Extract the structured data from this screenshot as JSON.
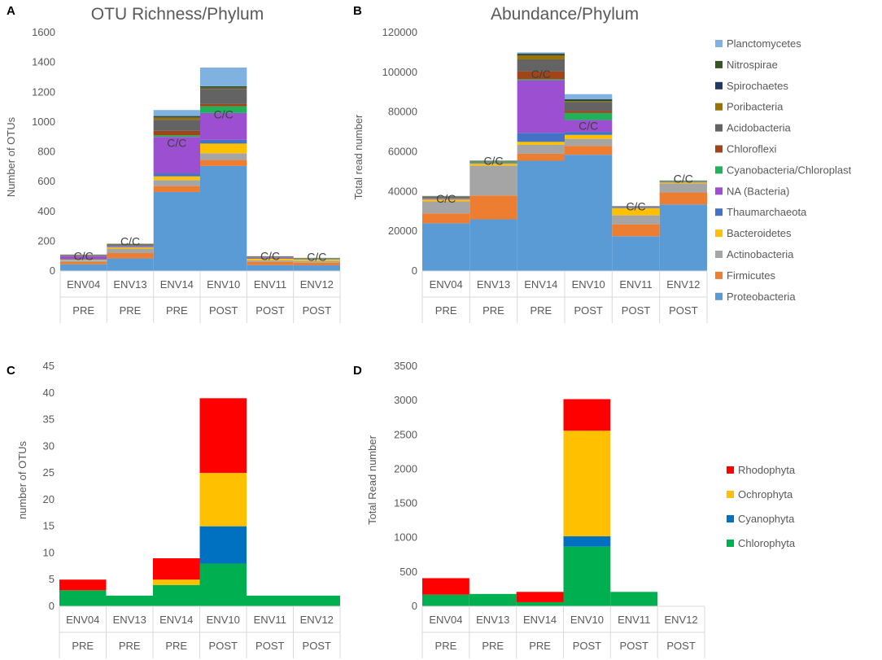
{
  "panels": {
    "A": {
      "letter": "A",
      "title": "OTU Richness/Phylum",
      "ylabel": "Number of OTUs",
      "ylim": [
        0,
        1600
      ],
      "yticks": [
        0,
        200,
        400,
        600,
        800,
        1000,
        1200,
        1400,
        1600
      ],
      "annotation": "C/C"
    },
    "B": {
      "letter": "B",
      "title": "Abundance/Phylum",
      "ylabel": "Total read number",
      "ylim": [
        0,
        120000
      ],
      "yticks": [
        0,
        20000,
        40000,
        60000,
        80000,
        100000,
        120000
      ],
      "annotation": "C/C"
    },
    "C": {
      "letter": "C",
      "title": "",
      "ylabel": "number of OTUs",
      "ylim": [
        0,
        45
      ],
      "yticks": [
        0,
        5,
        10,
        15,
        20,
        25,
        30,
        35,
        40,
        45
      ]
    },
    "D": {
      "letter": "D",
      "title": "",
      "ylabel": "Total Read number",
      "ylim": [
        0,
        3500
      ],
      "yticks": [
        0,
        500,
        1000,
        1500,
        2000,
        2500,
        3000,
        3500
      ]
    }
  },
  "phylum_legend": [
    "Planctomycetes",
    "Nitrospirae",
    "Spirochaetes",
    "Poribacteria",
    "Acidobacteria",
    "Chloroflexi",
    "Cyanobacteria/Chloroplast",
    "NA (Bacteria)",
    "Thaumarchaeota",
    "Bacteroidetes",
    "Actinobacteria",
    "Firmicutes",
    "Proteobacteria"
  ],
  "algae_legend": [
    "Rhodophyta",
    "Ochrophyta",
    "Cyanophyta",
    "Chlorophyta"
  ],
  "chart_data": [
    {
      "panel": "A",
      "type": "bar",
      "stacked": true,
      "title": "OTU Richness/Phylum",
      "xlabel": "",
      "ylabel": "Number of OTUs",
      "ylim": [
        0,
        1600
      ],
      "categories": [
        "ENV04",
        "ENV13",
        "ENV14",
        "ENV10",
        "ENV11",
        "ENV12"
      ],
      "groups": [
        "PRE",
        "PRE",
        "PRE",
        "POST",
        "POST",
        "POST"
      ],
      "series": [
        {
          "name": "Proteobacteria",
          "color": "#5b9bd5",
          "values": [
            45,
            85,
            530,
            705,
            40,
            38
          ]
        },
        {
          "name": "Firmicutes",
          "color": "#ed7d31",
          "values": [
            15,
            35,
            40,
            40,
            22,
            18
          ]
        },
        {
          "name": "Actinobacteria",
          "color": "#a5a5a5",
          "values": [
            10,
            30,
            40,
            45,
            10,
            10
          ]
        },
        {
          "name": "Bacteroidetes",
          "color": "#ffc000",
          "values": [
            5,
            10,
            25,
            65,
            10,
            10
          ]
        },
        {
          "name": "Thaumarchaeota",
          "color": "#4472c4",
          "values": [
            5,
            5,
            20,
            25,
            2,
            2
          ]
        },
        {
          "name": "NA (Bacteria)",
          "color": "#9c4fd1",
          "values": [
            20,
            5,
            245,
            180,
            5,
            2
          ]
        },
        {
          "name": "Cyanobacteria/Chloroplast",
          "color": "#1fb25a",
          "values": [
            2,
            2,
            10,
            45,
            2,
            2
          ]
        },
        {
          "name": "Chloroflexi",
          "color": "#a0441a",
          "values": [
            2,
            3,
            30,
            15,
            2,
            1
          ]
        },
        {
          "name": "Acidobacteria",
          "color": "#636363",
          "values": [
            3,
            5,
            75,
            100,
            3,
            2
          ]
        },
        {
          "name": "Poribacteria",
          "color": "#997300",
          "values": [
            1,
            1,
            15,
            5,
            1,
            1
          ]
        },
        {
          "name": "Spirochaetes",
          "color": "#1f3864",
          "values": [
            1,
            1,
            5,
            5,
            1,
            1
          ]
        },
        {
          "name": "Nitrospirae",
          "color": "#375623",
          "values": [
            1,
            1,
            5,
            10,
            1,
            1
          ]
        },
        {
          "name": "Planctomycetes",
          "color": "#7fb2e0",
          "values": [
            0,
            0,
            40,
            125,
            0,
            0
          ]
        }
      ],
      "annotations": [
        "C/C",
        "C/C",
        "C/C",
        "C/C",
        "C/C",
        "C/C"
      ]
    },
    {
      "panel": "B",
      "type": "bar",
      "stacked": true,
      "title": "Abundance/Phylum",
      "xlabel": "",
      "ylabel": "Total read number",
      "ylim": [
        0,
        120000
      ],
      "categories": [
        "ENV04",
        "ENV13",
        "ENV14",
        "ENV10",
        "ENV11",
        "ENV12"
      ],
      "groups": [
        "PRE",
        "PRE",
        "PRE",
        "POST",
        "POST",
        "POST"
      ],
      "series": [
        {
          "name": "Proteobacteria",
          "color": "#5b9bd5",
          "values": [
            24000,
            26000,
            55500,
            58500,
            17500,
            33500
          ]
        },
        {
          "name": "Firmicutes",
          "color": "#ed7d31",
          "values": [
            5000,
            12000,
            3500,
            4500,
            6000,
            6000
          ]
        },
        {
          "name": "Actinobacteria",
          "color": "#a5a5a5",
          "values": [
            6000,
            15000,
            4500,
            3500,
            4500,
            4500
          ]
        },
        {
          "name": "Bacteroidetes",
          "color": "#ffc000",
          "values": [
            1000,
            1000,
            1500,
            2000,
            3500,
            500
          ]
        },
        {
          "name": "Thaumarchaeota",
          "color": "#4472c4",
          "values": [
            200,
            100,
            4500,
            1500,
            100,
            100
          ]
        },
        {
          "name": "NA (Bacteria)",
          "color": "#9c4fd1",
          "values": [
            300,
            200,
            26500,
            6000,
            200,
            100
          ]
        },
        {
          "name": "Cyanobacteria/Chloroplast",
          "color": "#1fb25a",
          "values": [
            100,
            500,
            500,
            3500,
            100,
            200
          ]
        },
        {
          "name": "Chloroflexi",
          "color": "#a0441a",
          "values": [
            100,
            100,
            4000,
            1000,
            100,
            100
          ]
        },
        {
          "name": "Acidobacteria",
          "color": "#636363",
          "values": [
            700,
            300,
            6000,
            4500,
            300,
            200
          ]
        },
        {
          "name": "Poribacteria",
          "color": "#997300",
          "values": [
            100,
            100,
            2000,
            500,
            100,
            100
          ]
        },
        {
          "name": "Spirochaetes",
          "color": "#1f3864",
          "values": [
            100,
            100,
            500,
            500,
            100,
            100
          ]
        },
        {
          "name": "Nitrospirae",
          "color": "#375623",
          "values": [
            100,
            100,
            500,
            500,
            100,
            100
          ]
        },
        {
          "name": "Planctomycetes",
          "color": "#7fb2e0",
          "values": [
            100,
            100,
            500,
            2500,
            100,
            100
          ]
        }
      ],
      "annotations": [
        "C/C",
        "C/C",
        "C/C",
        "C/C",
        "C/C",
        "C/C"
      ]
    },
    {
      "panel": "C",
      "type": "bar",
      "stacked": true,
      "title": "",
      "xlabel": "",
      "ylabel": "number of OTUs",
      "ylim": [
        0,
        45
      ],
      "categories": [
        "ENV04",
        "ENV13",
        "ENV14",
        "ENV10",
        "ENV11",
        "ENV12"
      ],
      "groups": [
        "PRE",
        "PRE",
        "PRE",
        "POST",
        "POST",
        "POST"
      ],
      "series": [
        {
          "name": "Chlorophyta",
          "color": "#00b050",
          "values": [
            3,
            2,
            4,
            8,
            2,
            2
          ]
        },
        {
          "name": "Cyanophyta",
          "color": "#0070c0",
          "values": [
            0,
            0,
            0,
            7,
            0,
            0
          ]
        },
        {
          "name": "Ochrophyta",
          "color": "#ffc000",
          "values": [
            0,
            0,
            1,
            10,
            0,
            0
          ]
        },
        {
          "name": "Rhodophyta",
          "color": "#ff0000",
          "values": [
            2,
            0,
            4,
            14,
            0,
            0
          ]
        }
      ]
    },
    {
      "panel": "D",
      "type": "bar",
      "stacked": true,
      "title": "",
      "xlabel": "",
      "ylabel": "Total Read number",
      "ylim": [
        0,
        3500
      ],
      "categories": [
        "ENV04",
        "ENV13",
        "ENV14",
        "ENV10",
        "ENV11",
        "ENV12"
      ],
      "groups": [
        "PRE",
        "PRE",
        "PRE",
        "POST",
        "POST",
        "POST"
      ],
      "series": [
        {
          "name": "Chlorophyta",
          "color": "#00b050",
          "values": [
            170,
            180,
            60,
            870,
            210,
            0
          ]
        },
        {
          "name": "Cyanophyta",
          "color": "#0070c0",
          "values": [
            0,
            0,
            0,
            150,
            0,
            0
          ]
        },
        {
          "name": "Ochrophyta",
          "color": "#ffc000",
          "values": [
            0,
            0,
            0,
            1540,
            0,
            0
          ]
        },
        {
          "name": "Rhodophyta",
          "color": "#ff0000",
          "values": [
            240,
            0,
            150,
            460,
            0,
            0
          ]
        }
      ]
    }
  ]
}
